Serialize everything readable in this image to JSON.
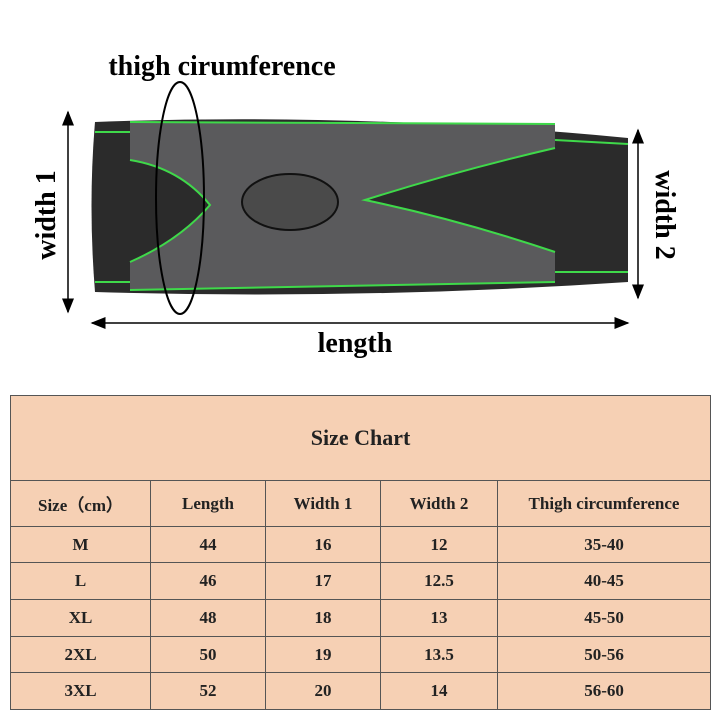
{
  "image": {
    "labels": {
      "thigh": "thigh cirumference",
      "width1": "width 1",
      "width2": "width 2",
      "length": "length"
    }
  },
  "table": {
    "title": "Size Chart",
    "header": [
      "Size（cm）",
      "Length",
      "Width 1",
      "Width 2",
      "Thigh circumference"
    ],
    "rows": [
      [
        "M",
        "44",
        "16",
        "12",
        "35-40"
      ],
      [
        "L",
        "46",
        "17",
        "12.5",
        "40-45"
      ],
      [
        "XL",
        "48",
        "18",
        "13",
        "45-50"
      ],
      [
        "2XL",
        "50",
        "19",
        "13.5",
        "50-56"
      ],
      [
        "3XL",
        "52",
        "20",
        "14",
        "56-60"
      ]
    ]
  }
}
